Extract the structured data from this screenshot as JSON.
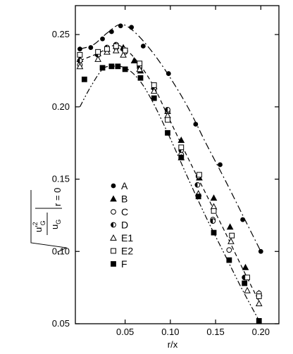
{
  "chart_data": {
    "type": "scatter",
    "xlabel": "r/x",
    "ylabel": {
      "numerator": "u′",
      "numerator_sup": "2",
      "numerator_sub": "G",
      "denominator": "u",
      "denominator_sub": "G",
      "suffix_sub": "r = 0"
    },
    "xlim": [
      -0.005,
      0.22
    ],
    "ylim": [
      0.05,
      0.27
    ],
    "x_ticks": [
      0.05,
      0.1,
      0.15,
      0.2
    ],
    "x_tick_labels": [
      "0.05",
      "0.10",
      "0.15",
      "0.20"
    ],
    "y_ticks": [
      0.05,
      0.1,
      0.15,
      0.2,
      0.25
    ],
    "y_tick_labels": [
      "0.05",
      "0.10",
      "0.15",
      "0.20",
      "0.25"
    ],
    "legend_position": "left-center",
    "series": [
      {
        "name": "A",
        "marker": "filled-circle",
        "x": [
          0.0,
          0.012,
          0.025,
          0.035,
          0.045,
          0.057,
          0.07,
          0.098,
          0.128,
          0.155,
          0.18,
          0.2
        ],
        "y": [
          0.24,
          0.241,
          0.247,
          0.252,
          0.256,
          0.255,
          0.242,
          0.223,
          0.188,
          0.16,
          0.122,
          0.1
        ]
      },
      {
        "name": "B",
        "marker": "filled-triangle",
        "x": [
          0.0,
          0.02,
          0.03,
          0.04,
          0.048,
          0.06,
          0.067,
          0.082,
          0.097,
          0.112,
          0.132,
          0.148,
          0.166,
          0.183,
          0.198
        ],
        "y": [
          0.233,
          0.237,
          0.24,
          0.242,
          0.241,
          0.232,
          0.225,
          0.214,
          0.197,
          0.177,
          0.151,
          0.137,
          0.117,
          0.089,
          0.071
        ]
      },
      {
        "name": "C",
        "marker": "open-circle",
        "x": [
          0.0,
          0.02,
          0.03,
          0.04,
          0.05,
          0.066,
          0.082,
          0.097,
          0.112,
          0.131,
          0.147,
          0.165,
          0.198
        ],
        "y": [
          0.229,
          0.236,
          0.239,
          0.241,
          0.238,
          0.227,
          0.213,
          0.197,
          0.167,
          0.152,
          0.122,
          0.101,
          0.071
        ]
      },
      {
        "name": "D",
        "marker": "half-circle",
        "x": [
          0.0,
          0.02,
          0.03,
          0.04,
          0.048,
          0.066,
          0.082,
          0.097,
          0.112,
          0.13,
          0.147,
          0.182,
          0.198
        ],
        "y": [
          0.232,
          0.236,
          0.241,
          0.243,
          0.24,
          0.228,
          0.213,
          0.198,
          0.17,
          0.146,
          0.121,
          0.082,
          0.069
        ]
      },
      {
        "name": "E1",
        "marker": "open-triangle",
        "x": [
          0.0,
          0.02,
          0.03,
          0.04,
          0.048,
          0.066,
          0.082,
          0.097,
          0.112,
          0.131,
          0.148,
          0.167,
          0.185,
          0.198
        ],
        "y": [
          0.228,
          0.233,
          0.238,
          0.239,
          0.236,
          0.226,
          0.211,
          0.194,
          0.165,
          0.14,
          0.131,
          0.107,
          0.073,
          0.064
        ]
      },
      {
        "name": "E2",
        "marker": "open-square",
        "x": [
          0.0,
          0.02,
          0.03,
          0.04,
          0.05,
          0.066,
          0.082,
          0.097,
          0.112,
          0.132,
          0.148,
          0.168,
          0.185,
          0.198
        ],
        "y": [
          0.236,
          0.238,
          0.24,
          0.242,
          0.239,
          0.23,
          0.215,
          0.191,
          0.172,
          0.153,
          0.128,
          0.111,
          0.082,
          0.069
        ]
      },
      {
        "name": "F",
        "marker": "filled-square",
        "x": [
          0.005,
          0.025,
          0.035,
          0.042,
          0.05,
          0.067,
          0.082,
          0.097,
          0.112,
          0.131,
          0.148,
          0.165,
          0.182,
          0.198
        ],
        "y": [
          0.219,
          0.227,
          0.228,
          0.228,
          0.226,
          0.22,
          0.206,
          0.182,
          0.165,
          0.138,
          0.113,
          0.094,
          0.078,
          0.052
        ]
      }
    ],
    "curves": [
      {
        "style": "dash-dot",
        "x": [
          0.0,
          0.015,
          0.03,
          0.045,
          0.06,
          0.08,
          0.1,
          0.12,
          0.14,
          0.16,
          0.18,
          0.2
        ],
        "y": [
          0.24,
          0.243,
          0.251,
          0.257,
          0.252,
          0.238,
          0.22,
          0.199,
          0.174,
          0.15,
          0.125,
          0.1
        ]
      },
      {
        "style": "dashed",
        "x": [
          0.0,
          0.02,
          0.035,
          0.045,
          0.06,
          0.08,
          0.1,
          0.12,
          0.14,
          0.16,
          0.18,
          0.2
        ],
        "y": [
          0.232,
          0.237,
          0.242,
          0.242,
          0.234,
          0.216,
          0.19,
          0.164,
          0.139,
          0.114,
          0.088,
          0.063
        ]
      },
      {
        "style": "dash-dot-dot",
        "x": [
          0.0,
          0.012,
          0.025,
          0.035,
          0.05,
          0.065,
          0.08,
          0.1,
          0.12,
          0.14,
          0.16,
          0.18,
          0.2
        ],
        "y": [
          0.2,
          0.214,
          0.226,
          0.228,
          0.227,
          0.219,
          0.204,
          0.178,
          0.15,
          0.123,
          0.098,
          0.073,
          0.05
        ]
      }
    ]
  }
}
